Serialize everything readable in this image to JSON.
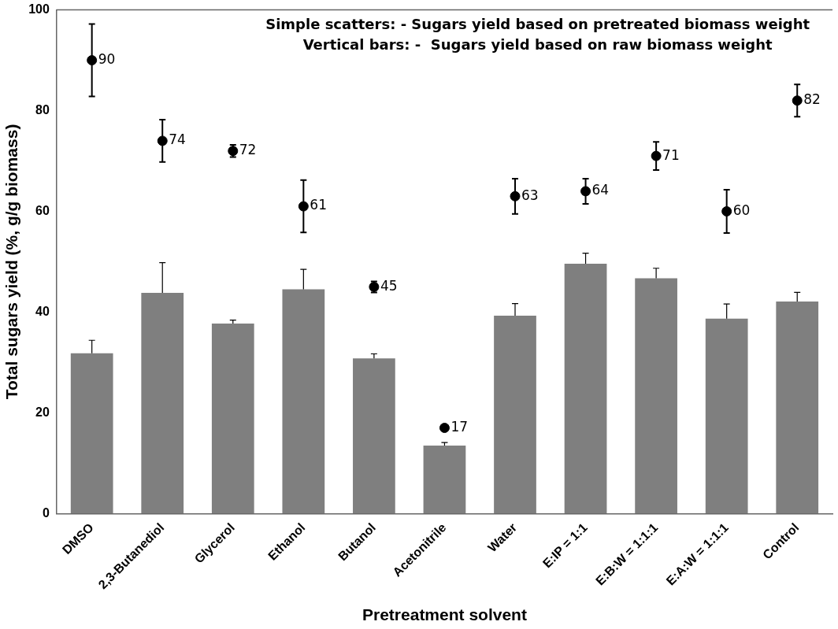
{
  "chart_data": {
    "type": "bar",
    "xlabel": "Pretreatment solvent",
    "ylabel": "Total sugars yield (%, g/g biomass)",
    "categories": [
      "DMSO",
      "2,3-Butanediol",
      "Glycerol",
      "Ethanol",
      "Butanol",
      "Acetonitrile",
      "Water",
      "E:IP = 1:1",
      "E:B:W = 1:1:1",
      "E:A:W = 1:1:1",
      "Control"
    ],
    "series": [
      {
        "type": "bar",
        "color": "#7f7f7f",
        "values": [
          31.8,
          43.8,
          37.7,
          44.5,
          30.8,
          13.5,
          39.3,
          49.6,
          46.7,
          38.7,
          42.1
        ],
        "errors": [
          2.6,
          6.0,
          0.7,
          4.0,
          0.9,
          0.6,
          2.4,
          2.1,
          2.0,
          2.9,
          1.8
        ]
      },
      {
        "type": "scatter",
        "color": "#000000",
        "marker": "circle",
        "x": [
          "DMSO",
          "2,3-Butanediol",
          "Glycerol",
          "Ethanol",
          "Butanol",
          "Acetonitrile",
          "Water",
          "E:IP = 1:1",
          "E:B:W = 1:1:1",
          "E:A:W = 1:1:1",
          "Control"
        ],
        "values": [
          90,
          74,
          72,
          61,
          45,
          17,
          63,
          64,
          71,
          60,
          82
        ],
        "errors": [
          7.2,
          4.2,
          1.2,
          5.2,
          1.1,
          null,
          3.5,
          2.5,
          2.8,
          4.3,
          3.2
        ],
        "data_labels": true
      }
    ],
    "ylim": [
      0,
      100
    ],
    "yticks": [
      0,
      20,
      40,
      60,
      80,
      100
    ],
    "grid": false,
    "legend": false,
    "annotations": [
      "Simple scatters: - Sugars yield based on pretreated biomass weight",
      "Vertical bars: -  Sugars yield based on raw biomass weight"
    ]
  }
}
